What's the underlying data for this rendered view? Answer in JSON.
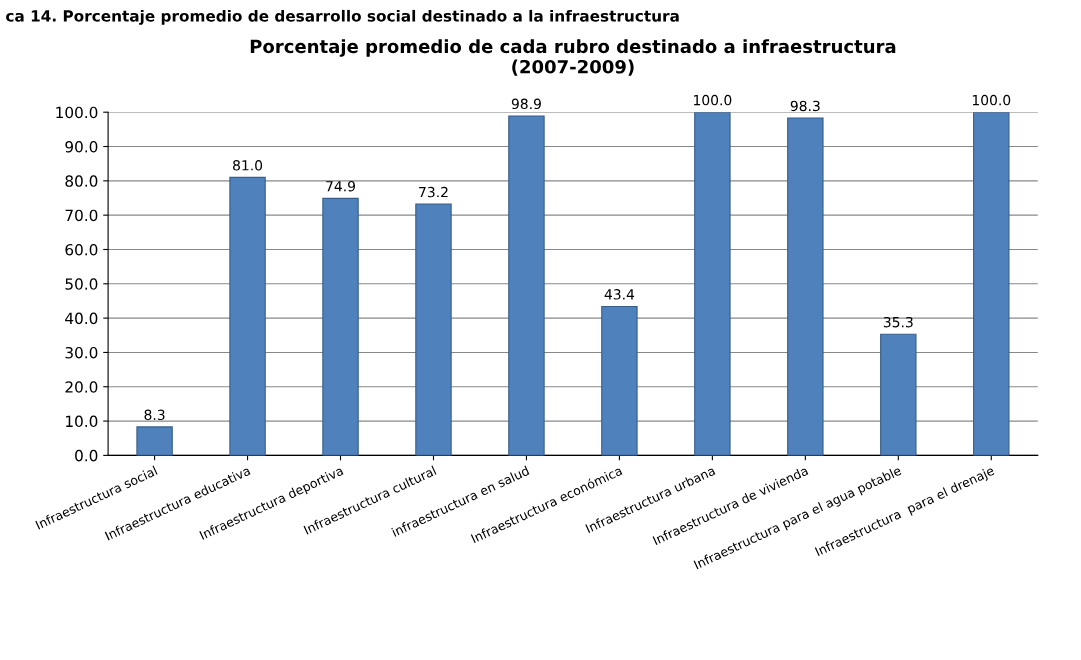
{
  "chart_data": {
    "type": "bar",
    "title": "Porcentaje promedio de cada rubro destinado a infraestructura\n(2007-2009)",
    "annotations": [
      "ca 14. Porcentaje promedio de desarrollo social destinado a la infraestructura"
    ],
    "categories": [
      "Infraestructura social",
      "Infraestructura educativa",
      "Infraestructura deportiva",
      "Infraestructura cultural",
      "infraestructura en salud",
      "Infraestructura económica",
      "Infraestructura urbana",
      "Infraestructura de vivienda",
      "Infraestructura para el agua potable",
      "Infraestructura  para el drenaje"
    ],
    "values": [
      8.3,
      81.0,
      74.9,
      73.2,
      98.9,
      43.4,
      100.0,
      98.3,
      35.3,
      100.0
    ],
    "value_labels": [
      "8.3",
      "81.0",
      "74.9",
      "73.2",
      "98.9",
      "43.4",
      "100.0",
      "98.3",
      "35.3",
      "100.0"
    ],
    "color": "#4f81bd",
    "ylim": [
      0,
      100
    ],
    "yticks": [
      {
        "value": 0,
        "label": "0.0"
      },
      {
        "value": 10,
        "label": "10.0"
      },
      {
        "value": 20,
        "label": "20.0"
      },
      {
        "value": 30,
        "label": "30.0"
      },
      {
        "value": 40,
        "label": "40.0"
      },
      {
        "value": 50,
        "label": "50.0"
      },
      {
        "value": 60,
        "label": "60.0"
      },
      {
        "value": 70,
        "label": "70.0"
      },
      {
        "value": 80,
        "label": "80.0"
      },
      {
        "value": 90,
        "label": "90.0"
      },
      {
        "value": 100,
        "label": "100.0"
      }
    ],
    "grid": "y"
  }
}
